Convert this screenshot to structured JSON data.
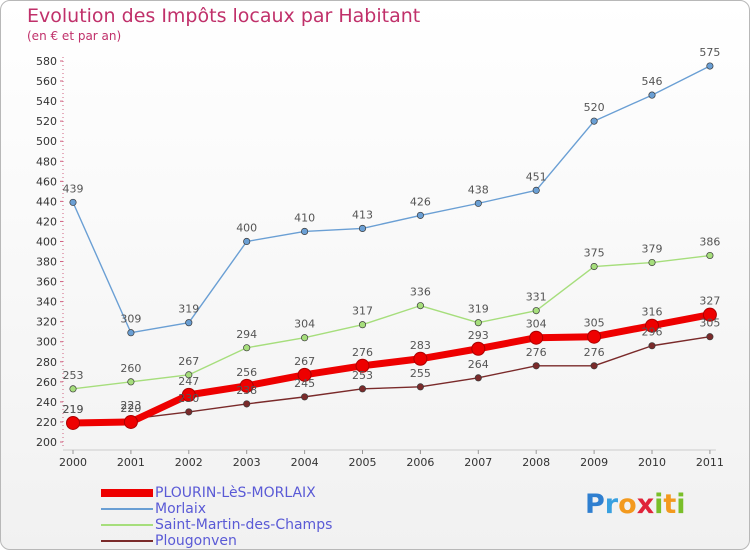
{
  "header": {
    "title": "Evolution des Impôts locaux par Habitant",
    "subtitle": "(en € et par an)"
  },
  "logo": {
    "text": "Proxiti",
    "letters": [
      {
        "ch": "P",
        "color": "#2f7fd0"
      },
      {
        "ch": "r",
        "color": "#38a0e0"
      },
      {
        "ch": "o",
        "color": "#f39a1e"
      },
      {
        "ch": "x",
        "color": "#e0243a"
      },
      {
        "ch": "i",
        "color": "#7abf2a"
      },
      {
        "ch": "t",
        "color": "#f39a1e"
      },
      {
        "ch": "i",
        "color": "#7abf2a"
      }
    ]
  },
  "chart_data": {
    "type": "line",
    "x": [
      "2000",
      "2001",
      "2002",
      "2003",
      "2004",
      "2005",
      "2006",
      "2007",
      "2008",
      "2009",
      "2010",
      "2011"
    ],
    "ylim": [
      200,
      580
    ],
    "yticks": [
      200,
      220,
      240,
      260,
      280,
      300,
      320,
      340,
      360,
      380,
      400,
      420,
      440,
      460,
      480,
      500,
      520,
      540,
      560,
      580
    ],
    "grid": false,
    "legend_position": "bottom-left",
    "series": [
      {
        "name": "PLOURIN-LèS-MORLAIX",
        "color": "#ee0000",
        "emphasis": true,
        "values": [
          219,
          220,
          247,
          256,
          267,
          276,
          283,
          293,
          304,
          305,
          316,
          327
        ]
      },
      {
        "name": "Morlaix",
        "color": "#6a9fd4",
        "emphasis": false,
        "values": [
          439,
          309,
          319,
          400,
          410,
          413,
          426,
          438,
          451,
          520,
          546,
          575
        ]
      },
      {
        "name": "Saint-Martin-des-Champs",
        "color": "#a6de7c",
        "emphasis": false,
        "values": [
          253,
          260,
          267,
          294,
          304,
          317,
          336,
          319,
          331,
          375,
          379,
          386
        ]
      },
      {
        "name": "Plougonven",
        "color": "#7a2a2a",
        "emphasis": false,
        "values": [
          219,
          223,
          230,
          238,
          245,
          253,
          255,
          264,
          276,
          276,
          296,
          305
        ]
      }
    ]
  }
}
